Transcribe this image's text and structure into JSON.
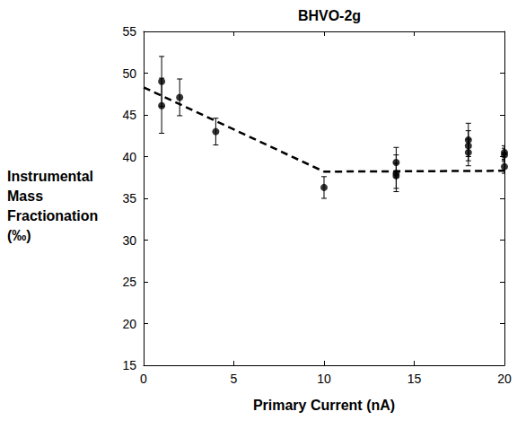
{
  "chart_data": {
    "type": "scatter",
    "title": "BHVO-2g",
    "x_label": "Primary Current (nA)",
    "y_label": "Instrumental Mass Fractionation (‰)",
    "xlim": [
      0,
      20
    ],
    "xticks": [
      0,
      5,
      10,
      15,
      20
    ],
    "ylim": [
      15,
      55
    ],
    "yticks": [
      15,
      20,
      25,
      30,
      35,
      40,
      45,
      50,
      55
    ],
    "grid": false,
    "series": [
      {
        "type": "scatter",
        "marker": "circle",
        "color": "#000000",
        "x": [
          1,
          1,
          2,
          4,
          10,
          14,
          14,
          14,
          18,
          18,
          18,
          20,
          20,
          20
        ],
        "values": [
          49.0,
          46.1,
          47.1,
          43.0,
          36.3,
          39.3,
          38.0,
          37.7,
          42.0,
          41.3,
          40.5,
          40.5,
          40.2,
          38.8
        ],
        "errors": [
          3.0,
          3.3,
          2.2,
          1.6,
          1.3,
          1.8,
          2.2,
          1.5,
          2.0,
          1.8,
          1.6,
          0.8,
          0.8,
          0.8
        ]
      },
      {
        "type": "line",
        "line_style": "dashed",
        "color": "#000000",
        "x": [
          0,
          10,
          20
        ],
        "values": [
          48.3,
          38.2,
          38.3
        ]
      }
    ]
  }
}
